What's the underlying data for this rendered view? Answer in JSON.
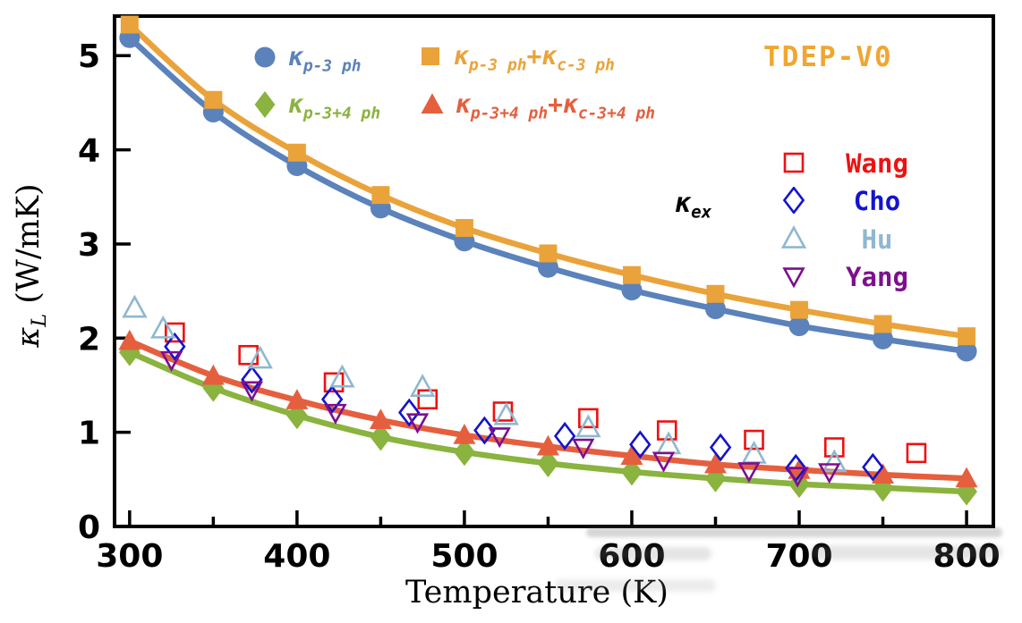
{
  "chart_data": {
    "type": "line",
    "title": "",
    "xlabel": "Temperature (K)",
    "ylabel": "κ_L (W/mK)",
    "ylabel_parts": [
      {
        "kind": "k",
        "text": "κ"
      },
      {
        "kind": "sub",
        "text": "L"
      },
      {
        "kind": "t",
        "text": " (W/mK)"
      }
    ],
    "annotation": "TDEP-V0",
    "annotation_color": "#f0a630",
    "exp_group_label_parts": [
      {
        "kind": "k",
        "text": "κ"
      },
      {
        "kind": "sub",
        "text": "ex"
      }
    ],
    "xlim": [
      291,
      816
    ],
    "ylim": [
      0,
      5.42
    ],
    "x_major_ticks": [
      300,
      400,
      500,
      600,
      700,
      800
    ],
    "x_minor_ticks": [
      350,
      450,
      550,
      650,
      750
    ],
    "y_ticks": [
      0,
      1,
      2,
      3,
      4,
      5
    ],
    "grid": false,
    "legend_position": "top-inside",
    "temperatures": [
      300,
      350,
      400,
      450,
      500,
      550,
      600,
      650,
      700,
      750,
      800
    ],
    "series": [
      {
        "name": "κ_p-3ph",
        "label_parts": [
          {
            "kind": "k",
            "text": "κ"
          },
          {
            "kind": "sub",
            "text": "p-3 ph"
          }
        ],
        "marker": "circle",
        "color": "#5b82bb",
        "open": false,
        "size": 23,
        "values": [
          5.19,
          4.4,
          3.83,
          3.38,
          3.03,
          2.75,
          2.51,
          2.31,
          2.13,
          1.99,
          1.86
        ]
      },
      {
        "name": "κ_p-3ph + κ_c-3ph",
        "label_parts": [
          {
            "kind": "k",
            "text": "κ"
          },
          {
            "kind": "sub",
            "text": "p-3 ph"
          },
          {
            "kind": "t",
            "text": "+"
          },
          {
            "kind": "k",
            "text": "κ"
          },
          {
            "kind": "sub",
            "text": "c-3 ph"
          }
        ],
        "marker": "square",
        "color": "#eaa33a",
        "open": false,
        "size": 20,
        "values": [
          5.33,
          4.53,
          3.97,
          3.52,
          3.17,
          2.9,
          2.67,
          2.47,
          2.3,
          2.15,
          2.02
        ]
      },
      {
        "name": "κ_p-3+4ph",
        "label_parts": [
          {
            "kind": "k",
            "text": "κ"
          },
          {
            "kind": "sub",
            "text": "p-3+4 ph"
          }
        ],
        "marker": "diamond",
        "color": "#8ab33f",
        "open": false,
        "size": 27,
        "values": [
          1.85,
          1.47,
          1.18,
          0.95,
          0.79,
          0.67,
          0.58,
          0.51,
          0.45,
          0.41,
          0.37
        ]
      },
      {
        "name": "κ_p-3+4ph + κ_c-3+4ph",
        "label_parts": [
          {
            "kind": "k",
            "text": "κ"
          },
          {
            "kind": "sub",
            "text": "p-3+4 ph"
          },
          {
            "kind": "t",
            "text": "+"
          },
          {
            "kind": "k",
            "text": "κ"
          },
          {
            "kind": "sub",
            "text": "c-3+4 ph"
          }
        ],
        "marker": "triangle-up",
        "color": "#e55f3e",
        "open": false,
        "size": 25,
        "values": [
          1.97,
          1.6,
          1.34,
          1.13,
          0.97,
          0.85,
          0.75,
          0.66,
          0.6,
          0.55,
          0.51
        ]
      }
    ],
    "experimental": [
      {
        "name": "Wang",
        "marker": "square",
        "color": "#ee1111",
        "open": true,
        "size": 20,
        "points": [
          [
            327,
            2.06
          ],
          [
            371,
            1.82
          ],
          [
            422,
            1.53
          ],
          [
            478,
            1.35
          ],
          [
            523,
            1.22
          ],
          [
            574,
            1.15
          ],
          [
            621,
            1.02
          ],
          [
            673,
            0.92
          ],
          [
            721,
            0.84
          ],
          [
            770,
            0.78
          ]
        ]
      },
      {
        "name": "Cho",
        "marker": "diamond",
        "color": "#1414cc",
        "open": true,
        "size": 24,
        "points": [
          [
            327,
            1.91
          ],
          [
            373,
            1.56
          ],
          [
            421,
            1.35
          ],
          [
            467,
            1.21
          ],
          [
            512,
            1.02
          ],
          [
            560,
            0.96
          ],
          [
            605,
            0.87
          ],
          [
            653,
            0.84
          ],
          [
            698,
            0.62
          ],
          [
            744,
            0.63
          ]
        ]
      },
      {
        "name": "Hu",
        "marker": "triangle-up",
        "color": "#8fb8d0",
        "open": true,
        "size": 24,
        "points": [
          [
            303,
            2.32
          ],
          [
            320,
            2.1
          ],
          [
            378,
            1.78
          ],
          [
            427,
            1.58
          ],
          [
            475,
            1.48
          ],
          [
            525,
            1.18
          ],
          [
            574,
            1.05
          ],
          [
            622,
            0.87
          ],
          [
            673,
            0.77
          ],
          [
            721,
            0.68
          ]
        ]
      },
      {
        "name": "Yang",
        "marker": "triangle-down",
        "color": "#7d0f8e",
        "open": true,
        "size": 21,
        "points": [
          [
            325,
            1.77
          ],
          [
            373,
            1.45
          ],
          [
            423,
            1.21
          ],
          [
            472,
            1.11
          ],
          [
            521,
            0.96
          ],
          [
            571,
            0.84
          ],
          [
            619,
            0.7
          ],
          [
            670,
            0.59
          ],
          [
            699,
            0.54
          ],
          [
            718,
            0.58
          ]
        ]
      }
    ]
  }
}
